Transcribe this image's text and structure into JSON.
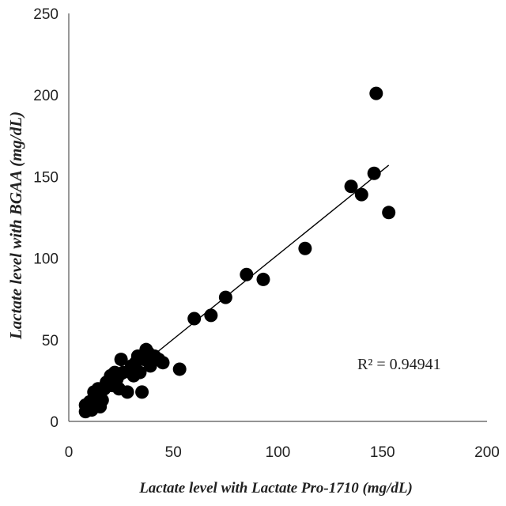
{
  "chart_data": {
    "type": "scatter",
    "title": "",
    "xlabel": "Lactate level with Lactate Pro-1710 (mg/dL)",
    "ylabel": "Lactate level with BGAA (mg/dL)",
    "xlim": [
      0,
      200
    ],
    "ylim": [
      0,
      250
    ],
    "xticks": [
      "0",
      "50",
      "100",
      "150",
      "200"
    ],
    "yticks": [
      "0",
      "50",
      "100",
      "150",
      "200",
      "250"
    ],
    "grid": false,
    "legend": "none",
    "marker_color": "#000000",
    "trendline_color": "#000000",
    "trendline": {
      "x": [
        8,
        153
      ],
      "y": [
        7,
        157
      ]
    },
    "annotation": "R² = 0.94941",
    "points": [
      {
        "x": 8,
        "y": 6
      },
      {
        "x": 9,
        "y": 8
      },
      {
        "x": 8,
        "y": 10
      },
      {
        "x": 10,
        "y": 12
      },
      {
        "x": 11,
        "y": 7
      },
      {
        "x": 12,
        "y": 14
      },
      {
        "x": 13,
        "y": 10
      },
      {
        "x": 12,
        "y": 18
      },
      {
        "x": 14,
        "y": 20
      },
      {
        "x": 15,
        "y": 9
      },
      {
        "x": 15,
        "y": 16
      },
      {
        "x": 16,
        "y": 13
      },
      {
        "x": 17,
        "y": 20
      },
      {
        "x": 18,
        "y": 24
      },
      {
        "x": 19,
        "y": 22
      },
      {
        "x": 20,
        "y": 28
      },
      {
        "x": 21,
        "y": 22
      },
      {
        "x": 22,
        "y": 30
      },
      {
        "x": 23,
        "y": 26
      },
      {
        "x": 24,
        "y": 20
      },
      {
        "x": 25,
        "y": 38
      },
      {
        "x": 26,
        "y": 30
      },
      {
        "x": 28,
        "y": 18
      },
      {
        "x": 30,
        "y": 34
      },
      {
        "x": 31,
        "y": 28
      },
      {
        "x": 32,
        "y": 36
      },
      {
        "x": 33,
        "y": 40
      },
      {
        "x": 34,
        "y": 30
      },
      {
        "x": 35,
        "y": 18
      },
      {
        "x": 36,
        "y": 38
      },
      {
        "x": 37,
        "y": 44
      },
      {
        "x": 38,
        "y": 42
      },
      {
        "x": 39,
        "y": 34
      },
      {
        "x": 41,
        "y": 40
      },
      {
        "x": 43,
        "y": 38
      },
      {
        "x": 45,
        "y": 36
      },
      {
        "x": 53,
        "y": 32
      },
      {
        "x": 60,
        "y": 63
      },
      {
        "x": 68,
        "y": 65
      },
      {
        "x": 75,
        "y": 76
      },
      {
        "x": 85,
        "y": 90
      },
      {
        "x": 93,
        "y": 87
      },
      {
        "x": 113,
        "y": 106
      },
      {
        "x": 135,
        "y": 144
      },
      {
        "x": 140,
        "y": 139
      },
      {
        "x": 146,
        "y": 152
      },
      {
        "x": 147,
        "y": 201
      },
      {
        "x": 153,
        "y": 128
      }
    ]
  }
}
